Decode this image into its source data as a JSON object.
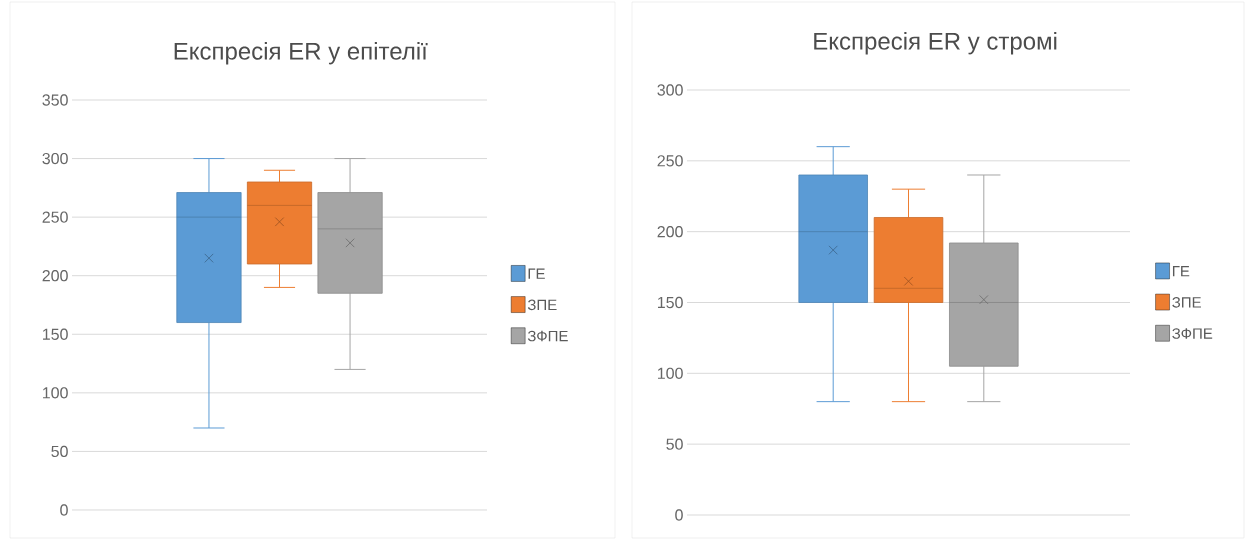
{
  "chart_data": [
    {
      "type": "box",
      "title": "Експресія ER у епітелії",
      "categories": [
        null
      ],
      "ylim": [
        0,
        350
      ],
      "yticks": [
        0,
        50,
        100,
        150,
        200,
        250,
        300,
        350
      ],
      "grid": "y",
      "legend": "right",
      "series": [
        {
          "name": "ГЕ",
          "color": "#5b9bd5",
          "boxes": [
            {
              "low": 70,
              "q1": 160,
              "median": 250,
              "q3": 271,
              "high": 300,
              "mean": 215
            }
          ]
        },
        {
          "name": "ЗПЕ",
          "color": "#ed7d31",
          "boxes": [
            {
              "low": 190,
              "q1": 210,
              "median": 260,
              "q3": 280,
              "high": 290,
              "mean": 246
            }
          ]
        },
        {
          "name": "ЗФПЕ",
          "color": "#a5a5a5",
          "boxes": [
            {
              "low": 120,
              "q1": 185,
              "median": 240,
              "q3": 271,
              "high": 300,
              "mean": 228
            }
          ]
        }
      ]
    },
    {
      "type": "box",
      "title": "Експресія ER у стромі",
      "categories": [
        null
      ],
      "ylim": [
        0,
        300
      ],
      "yticks": [
        0,
        50,
        100,
        150,
        200,
        250,
        300
      ],
      "grid": "y",
      "legend": "right",
      "series": [
        {
          "name": "ГЕ",
          "color": "#5b9bd5",
          "boxes": [
            {
              "low": 80,
              "q1": 150,
              "median": 200,
              "q3": 240,
              "high": 260,
              "mean": 187
            }
          ]
        },
        {
          "name": "ЗПЕ",
          "color": "#ed7d31",
          "boxes": [
            {
              "low": 80,
              "q1": 150,
              "median": 160,
              "q3": 210,
              "high": 230,
              "mean": 165
            }
          ]
        },
        {
          "name": "ЗФПЕ",
          "color": "#a5a5a5",
          "boxes": [
            {
              "low": 80,
              "q1": 105,
              "median": 150,
              "q3": 192,
              "high": 240,
              "mean": 152
            }
          ]
        }
      ]
    }
  ]
}
